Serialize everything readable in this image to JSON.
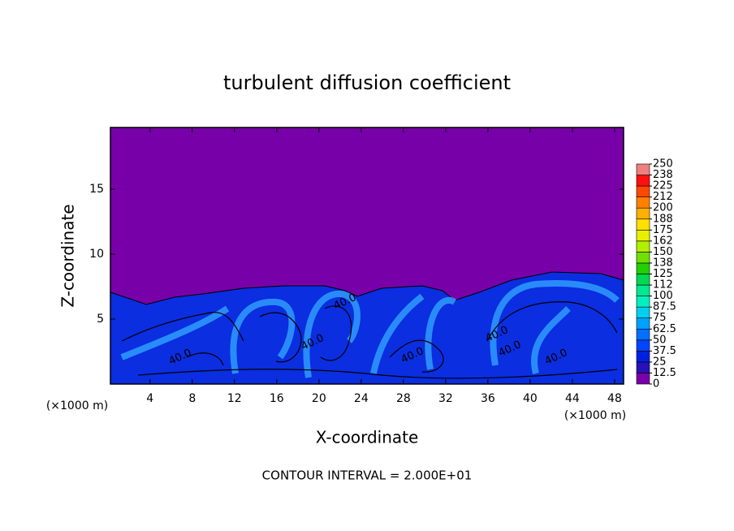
{
  "chart_data": {
    "type": "contour",
    "title": "turbulent diffusion coefficient",
    "x_label": "X-coordinate",
    "y_label": "Z-coordinate",
    "x_unit": "(×1000 m)",
    "xlim": [
      0.25,
      48.85
    ],
    "xticks": [
      4,
      8,
      12,
      16,
      20,
      24,
      28,
      32,
      36,
      40,
      44,
      48
    ],
    "ylim": [
      0,
      19.75
    ],
    "yticks": [
      5,
      10,
      15
    ],
    "colorbar": {
      "levels": [
        0,
        12.5,
        25,
        37.5,
        50,
        62.5,
        75,
        87.5,
        100,
        {
          "value": 112.5,
          "label": "112"
        },
        125,
        {
          "value": 137.5,
          "label": "138"
        },
        150,
        {
          "value": 162.5,
          "label": "162"
        },
        175,
        {
          "value": 187.5,
          "label": "188"
        },
        200,
        {
          "value": 212.5,
          "label": "212"
        },
        225,
        {
          "value": 237.5,
          "label": "238"
        },
        250
      ],
      "colors": [
        "#7800a8",
        "#2a10b8",
        "#0020e0",
        "#0044ff",
        "#0070ff",
        "#00a0ff",
        "#00d0f0",
        "#00f0c0",
        "#00e890",
        "#00d850",
        "#20d000",
        "#70e000",
        "#b0f000",
        "#e8f000",
        "#ffe000",
        "#ffb000",
        "#ff8000",
        "#ff4800",
        "#ff1010",
        "#f08080"
      ]
    },
    "contour_labels": [
      "40.0",
      "40.0",
      "40.0",
      "40.0",
      "40.0",
      "40.0",
      "40.0"
    ],
    "footer": "CONTOUR INTERVAL = 2.000E+01"
  }
}
